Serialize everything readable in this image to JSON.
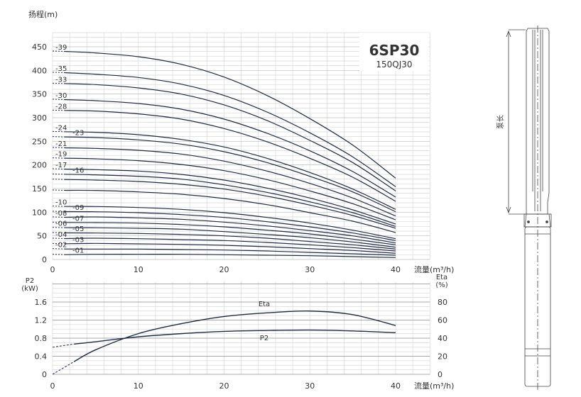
{
  "chart_data": [
    {
      "type": "line",
      "title": "6SP30",
      "subtitle": "150QJ30",
      "ylabel": "扬程(m)",
      "xlabel": "流量(m³/h)",
      "xlim": [
        0,
        44
      ],
      "ylim": [
        0,
        480
      ],
      "xticks": [
        0,
        10,
        20,
        30,
        40
      ],
      "yticks": [
        0,
        50,
        100,
        150,
        200,
        250,
        300,
        350,
        400,
        450
      ],
      "grid": true,
      "x": [
        0,
        5,
        10,
        15,
        20,
        25,
        30,
        35,
        40
      ],
      "series": [
        {
          "name": "-39",
          "values": [
            441,
            437,
            429,
            413,
            386,
            347,
            298,
            242,
            172
          ]
        },
        {
          "name": "-35",
          "values": [
            396,
            392,
            385,
            371,
            347,
            312,
            268,
            217,
            154
          ]
        },
        {
          "name": "-33",
          "values": [
            373,
            370,
            363,
            350,
            327,
            294,
            252,
            205,
            145
          ]
        },
        {
          "name": "-30",
          "values": [
            339,
            336,
            330,
            318,
            297,
            267,
            230,
            186,
            132
          ]
        },
        {
          "name": "-28",
          "values": [
            316,
            314,
            308,
            297,
            277,
            249,
            214,
            174,
            123
          ]
        },
        {
          "name": "-24",
          "values": [
            271,
            269,
            264,
            254,
            238,
            214,
            184,
            149,
            106
          ]
        },
        {
          "name": "-23",
          "values": [
            260,
            258,
            253,
            244,
            228,
            205,
            176,
            143,
            101
          ]
        },
        {
          "name": "-21",
          "values": [
            237,
            235,
            231,
            223,
            208,
            187,
            161,
            130,
            92
          ]
        },
        {
          "name": "-19",
          "values": [
            215,
            213,
            209,
            201,
            188,
            169,
            145,
            118,
            84
          ]
        },
        {
          "name": "-17",
          "values": [
            192,
            190,
            187,
            180,
            168,
            151,
            130,
            105,
            75
          ]
        },
        {
          "name": "-16",
          "values": [
            181,
            179,
            176,
            170,
            158,
            142,
            122,
            99,
            70
          ]
        },
        {
          "name": "",
          "values": [
            170,
            168,
            165,
            159,
            149,
            134,
            115,
            93,
            66
          ]
        },
        {
          "name": "",
          "values": [
            147,
            146,
            143,
            138,
            129,
            116,
            99,
            81,
            57
          ]
        },
        {
          "name": "-10",
          "values": [
            113,
            112,
            110,
            106,
            99,
            89,
            77,
            62,
            44
          ]
        },
        {
          "name": "-09",
          "values": [
            102,
            101,
            99,
            95,
            89,
            80,
            69,
            56,
            40
          ]
        },
        {
          "name": "-08",
          "values": [
            90,
            90,
            88,
            85,
            79,
            71,
            61,
            50,
            35
          ]
        },
        {
          "name": "-07",
          "values": [
            79,
            78,
            77,
            74,
            69,
            62,
            54,
            43,
            31
          ]
        },
        {
          "name": "-06",
          "values": [
            68,
            67,
            66,
            64,
            59,
            53,
            46,
            37,
            26
          ]
        },
        {
          "name": "-05",
          "values": [
            57,
            56,
            55,
            53,
            50,
            45,
            38,
            31,
            22
          ]
        },
        {
          "name": "-04",
          "values": [
            45,
            45,
            44,
            42,
            40,
            36,
            31,
            25,
            18
          ]
        },
        {
          "name": "-03",
          "values": [
            34,
            34,
            33,
            32,
            30,
            27,
            23,
            19,
            13
          ]
        },
        {
          "name": "-02",
          "values": [
            23,
            22,
            22,
            21,
            20,
            18,
            15,
            12,
            9
          ]
        },
        {
          "name": "-01",
          "values": [
            11,
            11,
            11,
            11,
            10,
            9,
            8,
            6,
            4
          ]
        }
      ]
    },
    {
      "type": "line",
      "xlabel": "流量(m³/h)",
      "ylabel_left": "P2\n(kW)",
      "ylabel_right": "Eta\n(%)",
      "xlim": [
        0,
        44
      ],
      "ylim_left": [
        0,
        2.0
      ],
      "ylim_right": [
        0,
        100
      ],
      "xticks": [
        0,
        10,
        20,
        30,
        40
      ],
      "yticks_left": [
        "0",
        "0.4",
        "0.8",
        "1.2",
        "1.6"
      ],
      "yticks_right": [
        "0",
        "20",
        "40",
        "60",
        "80"
      ],
      "grid": true,
      "x": [
        0,
        2.5,
        5,
        10,
        15,
        20,
        25,
        30,
        35,
        40
      ],
      "series": [
        {
          "name": "Eta",
          "axis": "right",
          "values": [
            0,
            14,
            27,
            45,
            56,
            64,
            68,
            70,
            66,
            54
          ]
        },
        {
          "name": "P2",
          "axis": "left",
          "values": [
            0.6,
            0.67,
            0.72,
            0.83,
            0.9,
            0.95,
            0.97,
            0.98,
            0.96,
            0.92
          ]
        }
      ]
    }
  ],
  "drawing": {
    "length_label": "泵长"
  },
  "colors": {
    "curve": "#1e2a4a",
    "grid": "#d9d9d9",
    "grid_major": "#a8a8a8"
  }
}
